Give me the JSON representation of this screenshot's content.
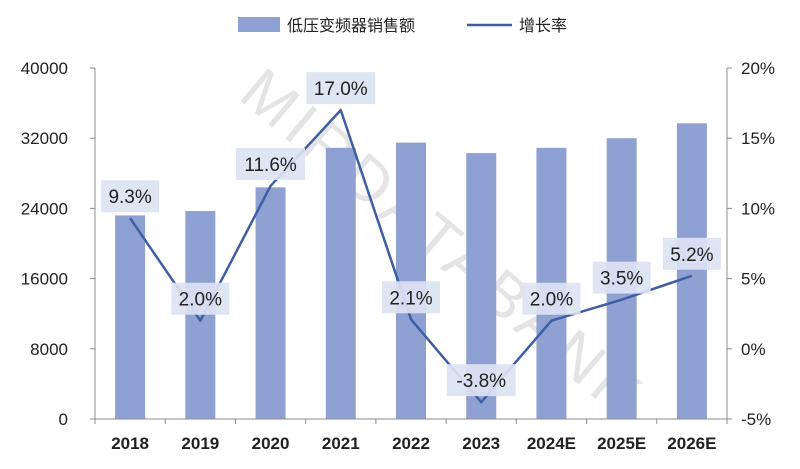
{
  "watermark": "MIRDATABANK",
  "chart_data": {
    "type": "bar",
    "categories": [
      "2018",
      "2019",
      "2020",
      "2021",
      "2022",
      "2023",
      "2024E",
      "2025E",
      "2026E"
    ],
    "series": [
      {
        "name": "低压变频器销售额",
        "type": "bar",
        "axis": "left",
        "color": "#8fa1d3",
        "values": [
          23200,
          23700,
          26400,
          30900,
          31500,
          30300,
          30900,
          32000,
          33700
        ]
      },
      {
        "name": "增长率",
        "type": "line",
        "axis": "right",
        "color": "#3f5ea3",
        "values": [
          9.3,
          2.0,
          11.6,
          17.0,
          2.1,
          -3.8,
          2.0,
          3.5,
          5.2
        ],
        "labels": [
          "9.3%",
          "2.0%",
          "11.6%",
          "17.0%",
          "2.1%",
          "-3.8%",
          "2.0%",
          "3.5%",
          "5.2%"
        ]
      }
    ],
    "left_axis": {
      "ylim": [
        0,
        40000
      ],
      "ticks": [
        0,
        8000,
        16000,
        24000,
        32000,
        40000
      ],
      "tick_labels": [
        "0",
        "8000",
        "16000",
        "24000",
        "32000",
        "40000"
      ]
    },
    "right_axis": {
      "ylim": [
        -5,
        20
      ],
      "ticks": [
        -5,
        0,
        5,
        10,
        15,
        20
      ],
      "tick_labels": [
        "-5%",
        "0%",
        "5%",
        "10%",
        "15%",
        "20%"
      ]
    },
    "legend": {
      "placement": "top-center",
      "entries": [
        "低压变频器销售额",
        "增长率"
      ]
    },
    "grid": false,
    "title": "",
    "xlabel": "",
    "ylabel": ""
  }
}
